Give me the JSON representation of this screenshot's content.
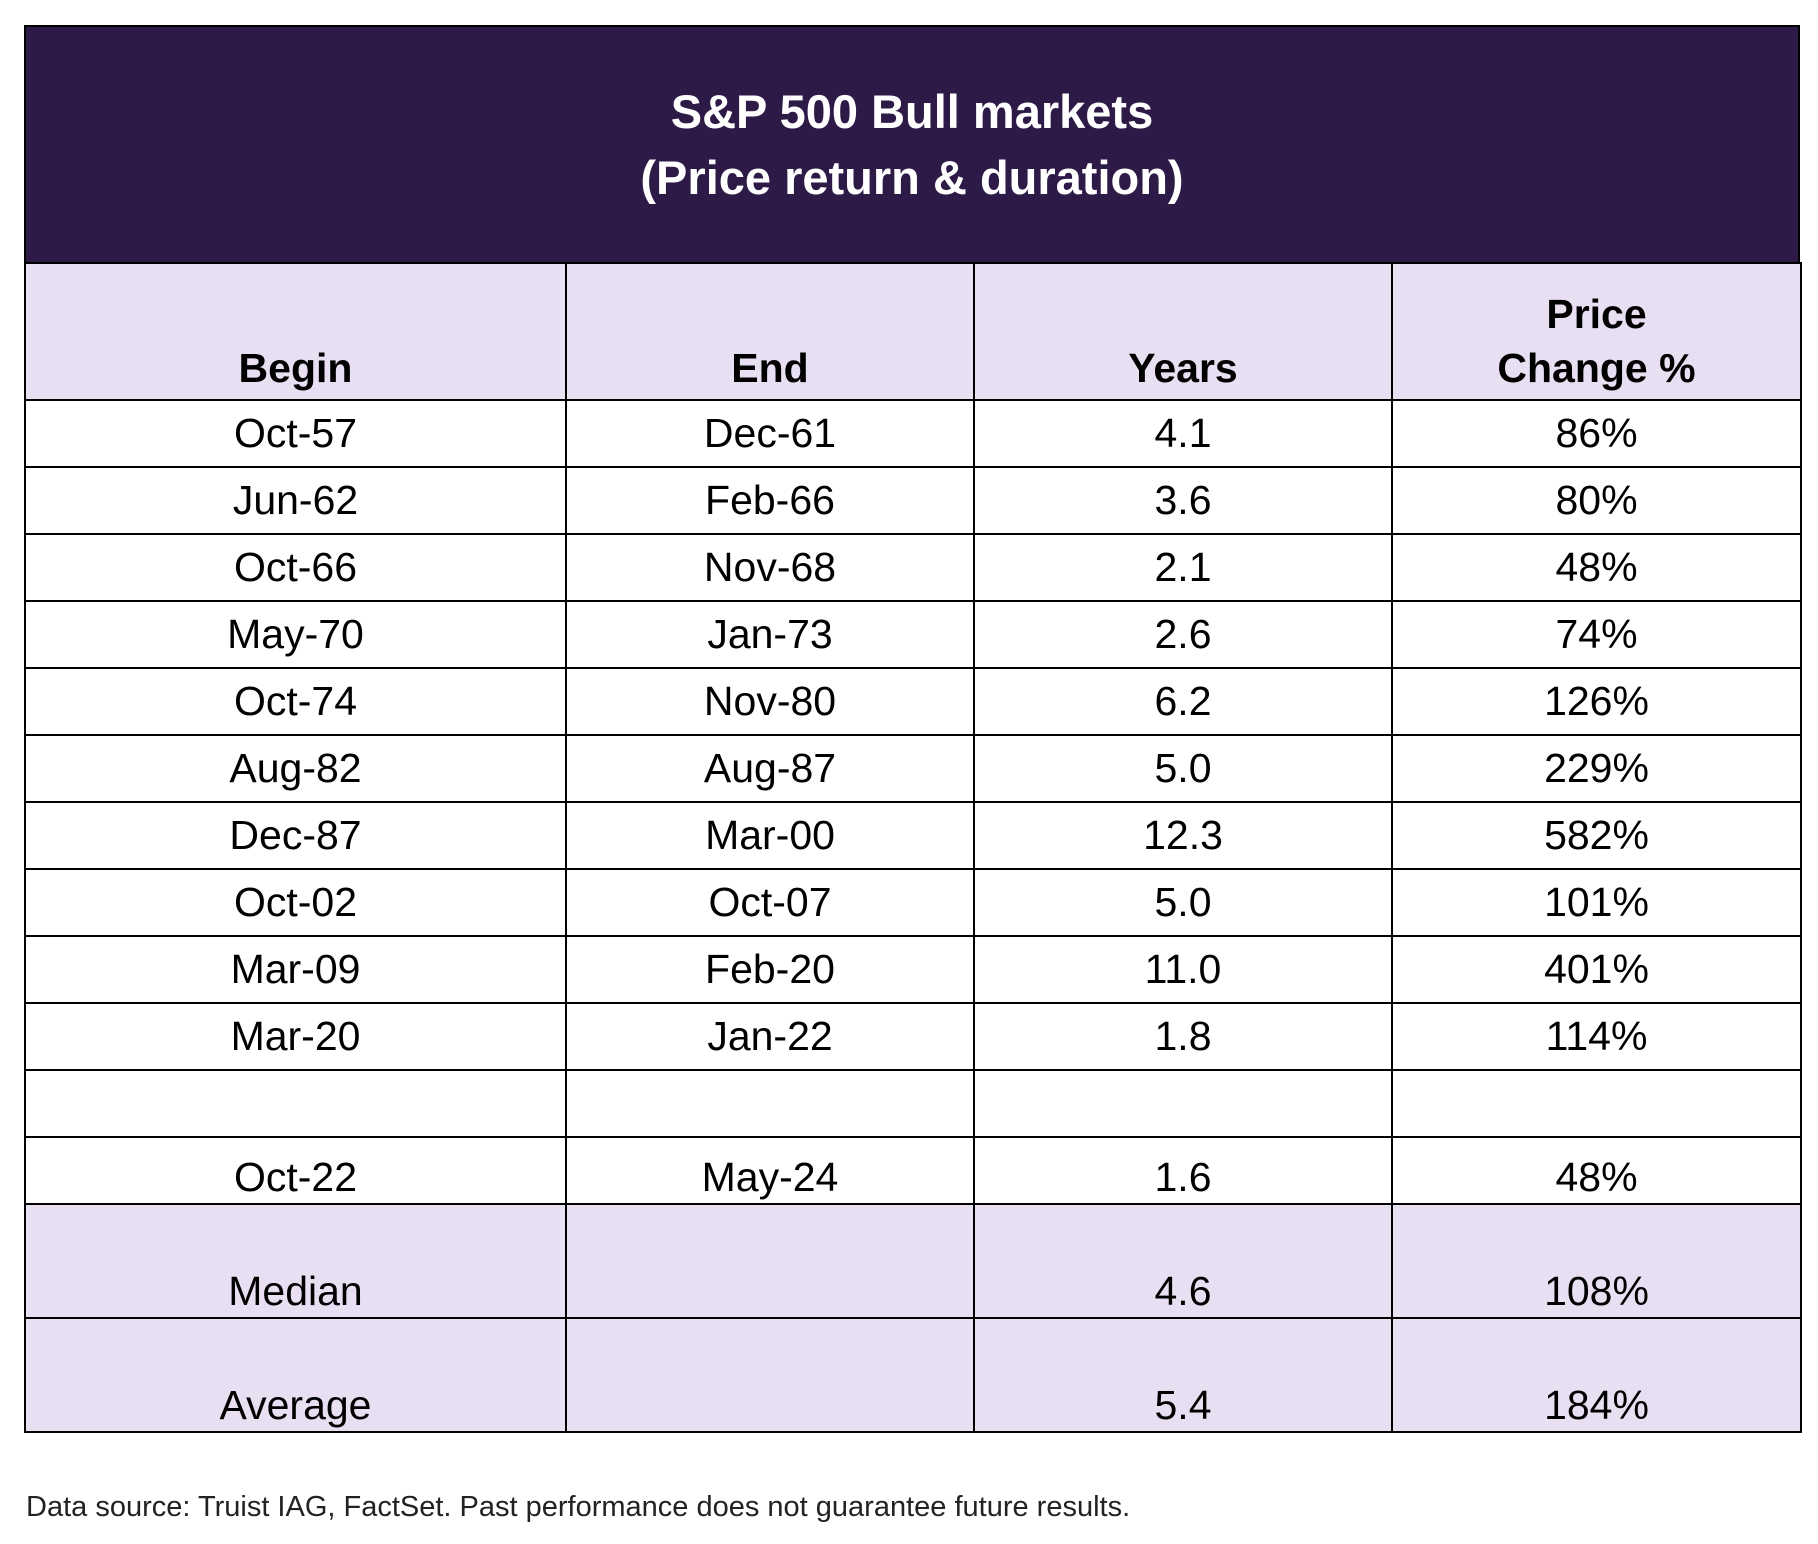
{
  "chart_data": {
    "type": "table",
    "title": "S&P 500 Bull markets",
    "subtitle": "(Price return & duration)",
    "columns": [
      "Begin",
      "End",
      "Years",
      "Price Change %"
    ],
    "column_header_lines": {
      "price_line1": "Price",
      "price_line2": "Change %"
    },
    "rows": [
      {
        "begin": "Oct-57",
        "end": "Dec-61",
        "years": "4.1",
        "change": "86%"
      },
      {
        "begin": "Jun-62",
        "end": "Feb-66",
        "years": "3.6",
        "change": "80%"
      },
      {
        "begin": "Oct-66",
        "end": "Nov-68",
        "years": "2.1",
        "change": "48%"
      },
      {
        "begin": "May-70",
        "end": "Jan-73",
        "years": "2.6",
        "change": "74%"
      },
      {
        "begin": "Oct-74",
        "end": "Nov-80",
        "years": "6.2",
        "change": "126%"
      },
      {
        "begin": "Aug-82",
        "end": "Aug-87",
        "years": "5.0",
        "change": "229%"
      },
      {
        "begin": "Dec-87",
        "end": "Mar-00",
        "years": "12.3",
        "change": "582%"
      },
      {
        "begin": "Oct-02",
        "end": "Oct-07",
        "years": "5.0",
        "change": "101%"
      },
      {
        "begin": "Mar-09",
        "end": "Feb-20",
        "years": "11.0",
        "change": "401%"
      },
      {
        "begin": "Mar-20",
        "end": "Jan-22",
        "years": "1.8",
        "change": "114%"
      }
    ],
    "current": {
      "begin": "Oct-22",
      "end": "May-24",
      "years": "1.6",
      "change": "48%"
    },
    "summary": [
      {
        "label": "Median",
        "end": "",
        "years": "4.6",
        "change": "108%"
      },
      {
        "label": "Average",
        "end": "",
        "years": "5.4",
        "change": "184%"
      }
    ]
  },
  "footer": {
    "source": "Data source: Truist IAG, FactSet. Past performance does not guarantee future results."
  },
  "colors": {
    "title_bg": "#2e1a47",
    "header_bg": "#e8e0f2",
    "title_text": "#ffffff"
  }
}
